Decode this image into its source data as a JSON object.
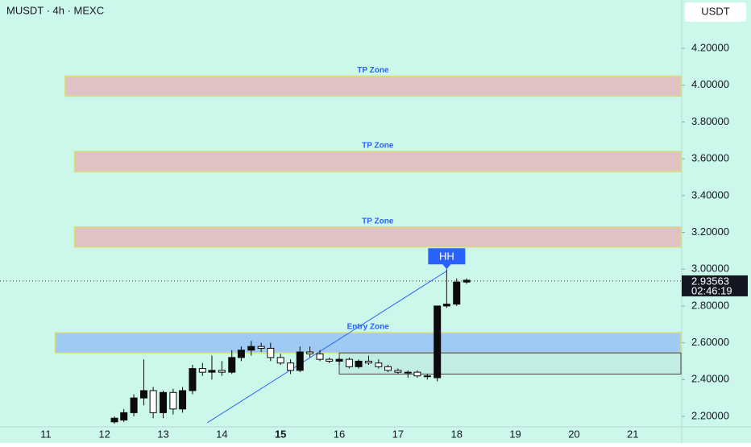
{
  "chart_data": {
    "type": "candlestick",
    "title": "MUSDT · 4h · MEXC",
    "y_unit": "USDT",
    "background": "#ccf8ec",
    "candle_color": "#0b0b0b",
    "x": [
      12.17,
      12.33,
      12.5,
      12.67,
      12.83,
      13,
      13.17,
      13.33,
      13.5,
      13.67,
      13.83,
      14,
      14.17,
      14.33,
      14.5,
      14.67,
      14.83,
      15,
      15.17,
      15.33,
      15.5,
      15.67,
      15.83,
      16,
      16.17,
      16.33,
      16.5,
      16.67,
      16.83,
      17,
      17.17,
      17.33,
      17.5,
      17.67,
      17.83,
      18,
      18.17
    ],
    "open": [
      2.17,
      2.18,
      2.22,
      2.3,
      2.34,
      2.22,
      2.33,
      2.24,
      2.34,
      2.46,
      2.44,
      2.45,
      2.44,
      2.52,
      2.56,
      2.58,
      2.57,
      2.52,
      2.49,
      2.45,
      2.55,
      2.54,
      2.51,
      2.5,
      2.51,
      2.47,
      2.5,
      2.49,
      2.47,
      2.45,
      2.44,
      2.44,
      2.42,
      2.41,
      2.8,
      2.81,
      2.93
    ],
    "high": [
      2.2,
      2.24,
      2.32,
      2.51,
      2.36,
      2.34,
      2.35,
      2.36,
      2.48,
      2.49,
      2.53,
      2.5,
      2.56,
      2.58,
      2.61,
      2.6,
      2.6,
      2.54,
      2.51,
      2.58,
      2.58,
      2.56,
      2.52,
      2.52,
      2.52,
      2.51,
      2.53,
      2.51,
      2.48,
      2.46,
      2.45,
      2.45,
      2.43,
      2.8,
      3.0,
      2.95,
      2.95
    ],
    "low": [
      2.16,
      2.17,
      2.2,
      2.26,
      2.19,
      2.19,
      2.21,
      2.22,
      2.32,
      2.42,
      2.4,
      2.42,
      2.43,
      2.5,
      2.53,
      2.55,
      2.5,
      2.48,
      2.43,
      2.44,
      2.52,
      2.5,
      2.49,
      2.48,
      2.46,
      2.46,
      2.48,
      2.46,
      2.44,
      2.43,
      2.41,
      2.41,
      2.4,
      2.39,
      2.79,
      2.8,
      2.92
    ],
    "close": [
      2.19,
      2.22,
      2.3,
      2.34,
      2.22,
      2.33,
      2.24,
      2.34,
      2.46,
      2.44,
      2.45,
      2.44,
      2.52,
      2.56,
      2.58,
      2.57,
      2.52,
      2.49,
      2.45,
      2.55,
      2.54,
      2.51,
      2.5,
      2.51,
      2.47,
      2.5,
      2.49,
      2.47,
      2.45,
      2.44,
      2.44,
      2.42,
      2.42,
      2.8,
      2.81,
      2.93,
      2.94
    ],
    "xlim": [
      10.22,
      21.82
    ],
    "xticks": [
      11,
      12,
      13,
      14,
      15,
      16,
      17,
      18,
      19,
      20,
      21
    ],
    "ylim": [
      2.143,
      4.463
    ],
    "yticks": [
      {
        "value": 2.2,
        "label": "2.20000"
      },
      {
        "value": 2.4,
        "label": "2.40000"
      },
      {
        "value": 2.6,
        "label": "2.60000"
      },
      {
        "value": 2.8,
        "label": "2.80000"
      },
      {
        "value": 3.0,
        "label": "3.00000"
      },
      {
        "value": 3.2,
        "label": "3.20000"
      },
      {
        "value": 3.4,
        "label": "3.40000"
      },
      {
        "value": 3.6,
        "label": "3.60000"
      },
      {
        "value": 3.8,
        "label": "3.80000"
      },
      {
        "value": 4.0,
        "label": "4.00000"
      },
      {
        "value": 4.2,
        "label": "4.20000"
      }
    ],
    "zones": [
      {
        "label": "TP Zone",
        "start": 11.33,
        "top": 4.05,
        "bottom": 3.94,
        "color": "#e0c2c4"
      },
      {
        "label": "TP Zone",
        "start": 11.49,
        "top": 3.64,
        "bottom": 3.53,
        "color": "#e0c2c4"
      },
      {
        "label": "TP Zone",
        "start": 11.49,
        "top": 3.23,
        "bottom": 3.12,
        "color": "#e0c2c4"
      },
      {
        "label": "Entry Zone",
        "start": 11.16,
        "top": 2.655,
        "bottom": 2.545,
        "color": "#9ecaf4"
      }
    ],
    "range_box": {
      "start": 16.0,
      "top": 2.545,
      "bottom": 2.43
    },
    "trendline": {
      "x": [
        13.75,
        17.83
      ],
      "y": [
        2.165,
        2.99
      ],
      "color": "#2962ff"
    },
    "marker": {
      "label": "HH",
      "x": 17.83,
      "y": 3.0
    },
    "last_price": {
      "value": 2.93563,
      "label": "2.93563",
      "countdown": "02:46:19"
    }
  }
}
